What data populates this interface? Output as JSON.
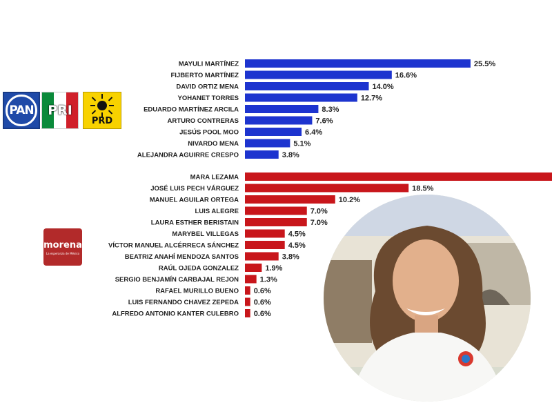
{
  "chart_data": {
    "type": "bar",
    "orientation": "horizontal",
    "groups": [
      {
        "color": "#1d34cf",
        "categories": [
          "MAYULI MARTÍNEZ",
          "FIJBERTO MARTÍNEZ",
          "DAVID ORTIZ MENA",
          "YOHANET TORRES",
          "EDUARDO MARTÍNEZ ARCILA",
          "ARTURO CONTRERAS",
          "JESÚS POOL MOO",
          "NIVARDO MENA",
          "ALEJANDRA AGUIRRE CRESPO"
        ],
        "values": [
          25.5,
          16.6,
          14.0,
          12.7,
          8.3,
          7.6,
          6.4,
          5.1,
          3.8
        ],
        "labels": [
          "25.5%",
          "16.6%",
          "14.0%",
          "12.7%",
          "8.3%",
          "7.6%",
          "6.4%",
          "5.1%",
          "3.8%"
        ]
      },
      {
        "color": "#c8161b",
        "categories": [
          "MARA LEZAMA",
          "JOSÉ LUIS PECH VÁRGUEZ",
          "MANUEL AGUILAR ORTEGA",
          "LUIS ALEGRE",
          "LAURA ESTHER BERISTAIN",
          "MARYBEL VILLEGAS",
          "VÍCTOR MANUEL ALCÉRRECA SÁNCHEZ",
          "BEATRIZ ANAHÍ MENDOZA SANTOS",
          "RAÚL OJEDA GONZALEZ",
          "SERGIO BENJAMÍN CARBAJAL REJON",
          "RAFAEL MURILLO BUENO",
          "LUIS FERNANDO CHAVEZ ZEPEDA",
          "ALFREDO ANTONIO KANTER CULEBRO"
        ],
        "values": [
          null,
          18.5,
          10.2,
          7.0,
          7.0,
          4.5,
          4.5,
          3.8,
          1.9,
          1.3,
          0.6,
          0.6,
          0.6
        ],
        "labels": [
          "",
          "18.5%",
          "10.2%",
          "7.0%",
          "7.0%",
          "4.5%",
          "4.5%",
          "3.8%",
          "1.9%",
          "1.3%",
          "0.6%",
          "0.6%",
          "0.6%"
        ]
      }
    ]
  },
  "logos": {
    "pan": "PAN",
    "pri": "PRI",
    "prd": "PRD",
    "morena": "morena",
    "morena_sub": "La esperanza de México",
    "pri_colors": [
      "#0a8a3a",
      "#ffffff",
      "#d0202a"
    ]
  }
}
